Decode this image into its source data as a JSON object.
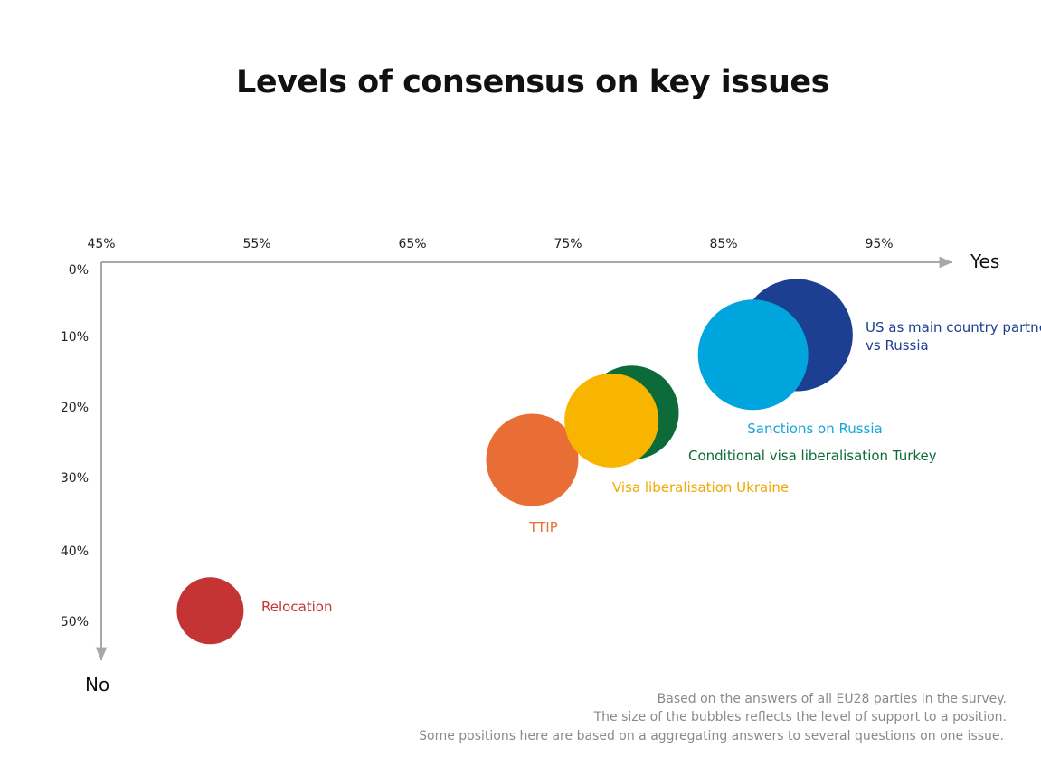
{
  "chart_data": {
    "type": "scatter",
    "title": "Levels of consensus on key issues",
    "x_axis_end_label": "Yes",
    "y_axis_end_label": "No",
    "x_ticks": [
      {
        "value": 45,
        "label": "45%"
      },
      {
        "value": 55,
        "label": "55%"
      },
      {
        "value": 65,
        "label": "65%"
      },
      {
        "value": 75,
        "label": "75%"
      },
      {
        "value": 85,
        "label": "85%"
      },
      {
        "value": 95,
        "label": "95%"
      }
    ],
    "y_ticks": [
      {
        "value": 0,
        "label": "0%"
      },
      {
        "value": 10,
        "label": "10%"
      },
      {
        "value": 20,
        "label": "20%"
      },
      {
        "value": 30,
        "label": "30%"
      },
      {
        "value": 40,
        "label": "40%"
      },
      {
        "value": 50,
        "label": "50%"
      }
    ],
    "xlim": [
      45,
      100
    ],
    "ylim": [
      0,
      55
    ],
    "grid": false,
    "series": [
      {
        "name": "Relocation",
        "x": 52,
        "y": 48.5,
        "size": 37,
        "color": "#c53434",
        "label_lines": [
          "Relocation"
        ]
      },
      {
        "name": "TTIP",
        "x": 72.7,
        "y": 27.5,
        "size": 51,
        "color": "#e86e35",
        "label_lines": [
          "TTIP"
        ]
      },
      {
        "name": "Conditional visa liberalisation Turkey",
        "x": 79.1,
        "y": 20.8,
        "size": 52,
        "color": "#0d6b3a",
        "label_lines": [
          "Conditional visa liberalisation Turkey"
        ]
      },
      {
        "name": "Visa liberalisation Ukraine",
        "x": 77.8,
        "y": 21.9,
        "size": 52,
        "color": "#f8b500",
        "label_lines": [
          "Visa liberalisation Ukraine"
        ]
      },
      {
        "name": "US as main country partner vs Russia",
        "x": 89.7,
        "y": 9.8,
        "size": 62,
        "color": "#1d3f91",
        "label_lines": [
          "US as main country partner",
          "vs Russia"
        ]
      },
      {
        "name": "Sanctions on Russia",
        "x": 86.9,
        "y": 12.6,
        "size": 61,
        "color": "#00a5de",
        "label_lines": [
          "Sanctions on Russia"
        ]
      }
    ]
  },
  "notes": [
    "Based on the answers of all EU28 parties in the survey.",
    "The size of the bubbles reflects the level of support to a position.",
    "Some positions here are based on a aggregating answers to several questions on one issue."
  ]
}
